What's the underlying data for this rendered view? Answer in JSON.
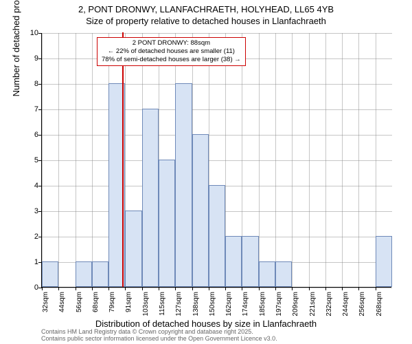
{
  "title": {
    "line1": "2, PONT DRONWY, LLANFACHRAETH, HOLYHEAD, LL65 4YB",
    "line2": "Size of property relative to detached houses in Llanfachraeth"
  },
  "ylabel": "Number of detached properties",
  "xlabel": "Distribution of detached houses by size in Llanfachraeth",
  "footer": {
    "line1": "Contains HM Land Registry data © Crown copyright and database right 2025.",
    "line2": "Contains public sector information licensed under the Open Government Licence v3.0."
  },
  "chart": {
    "type": "histogram",
    "ylim": [
      0,
      10
    ],
    "yticks": [
      0,
      1,
      2,
      3,
      4,
      5,
      6,
      7,
      8,
      9,
      10
    ],
    "xtick_labels": [
      "32sqm",
      "44sqm",
      "56sqm",
      "68sqm",
      "79sqm",
      "91sqm",
      "103sqm",
      "115sqm",
      "127sqm",
      "138sqm",
      "150sqm",
      "162sqm",
      "174sqm",
      "185sqm",
      "197sqm",
      "209sqm",
      "221sqm",
      "232sqm",
      "244sqm",
      "256sqm",
      "268sqm"
    ],
    "bars": [
      {
        "pos": 0,
        "h": 1
      },
      {
        "pos": 2,
        "h": 1
      },
      {
        "pos": 3,
        "h": 1
      },
      {
        "pos": 4,
        "h": 8
      },
      {
        "pos": 5,
        "h": 3
      },
      {
        "pos": 6,
        "h": 7
      },
      {
        "pos": 7,
        "h": 5
      },
      {
        "pos": 8,
        "h": 8
      },
      {
        "pos": 9,
        "h": 6
      },
      {
        "pos": 10,
        "h": 4
      },
      {
        "pos": 11,
        "h": 2
      },
      {
        "pos": 12,
        "h": 2
      },
      {
        "pos": 13,
        "h": 1
      },
      {
        "pos": 14,
        "h": 1
      },
      {
        "pos": 20,
        "h": 2
      }
    ],
    "bar_fill": "#d7e3f4",
    "bar_stroke": "#6e89b8",
    "grid_color": "#808080",
    "background": "#ffffff",
    "ref_line": {
      "position": 4.85,
      "color": "#cc0000"
    },
    "annotation": {
      "line1": "2 PONT DRONWY: 88sqm",
      "line2": "← 22% of detached houses are smaller (11)",
      "line3": "78% of semi-detached houses are larger (38) →",
      "border_color": "#cc0000"
    }
  }
}
